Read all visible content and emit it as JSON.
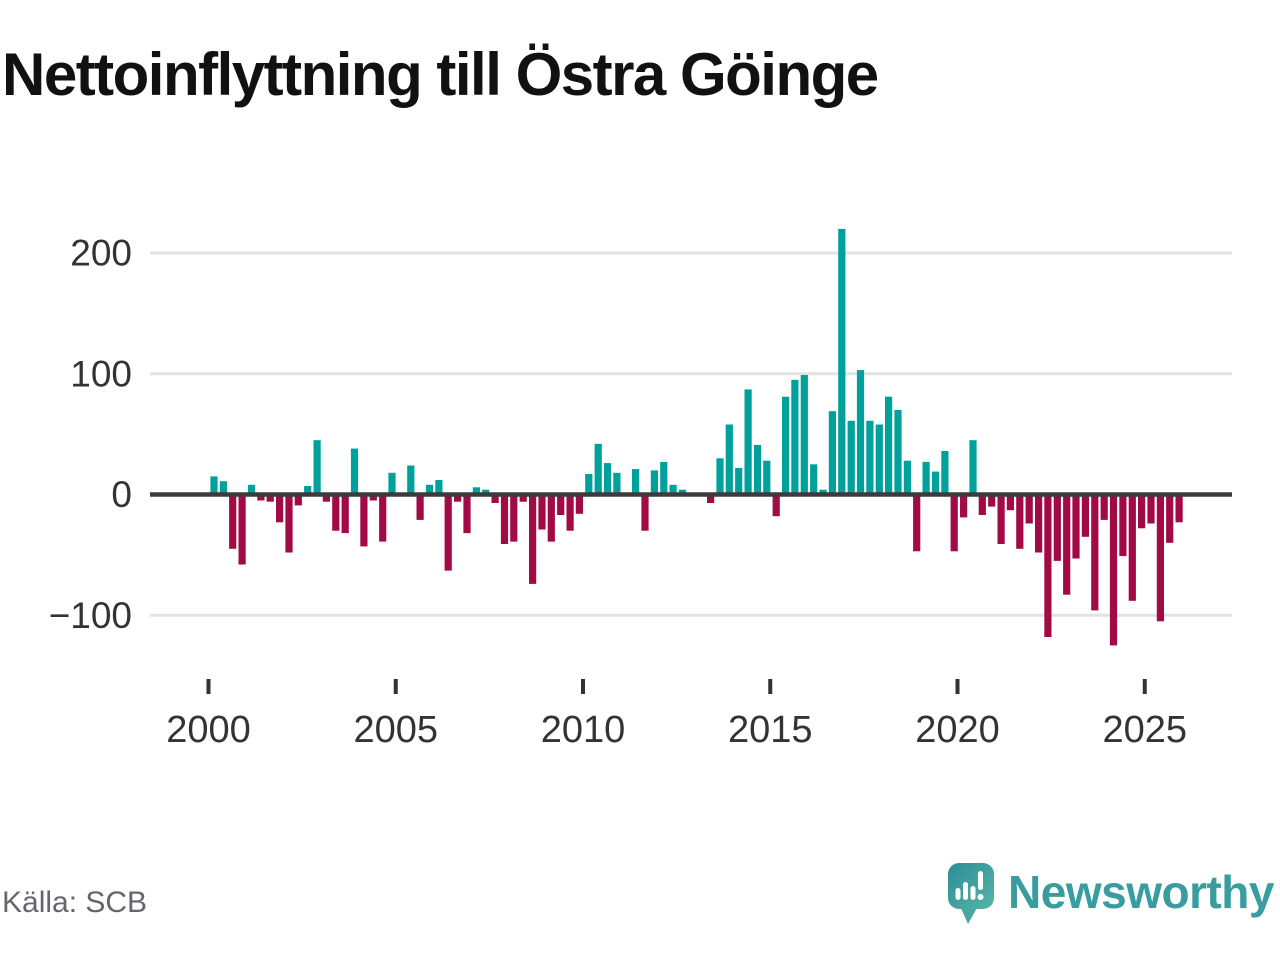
{
  "title": "Nettoinflyttning till Östra Göinge",
  "source": {
    "label": "Källa: SCB"
  },
  "brand": {
    "name": "Newsworthy",
    "color": "#399c9e",
    "icon": "newsworthy-speech-bubble-bar-chart-icon"
  },
  "chart_data": {
    "type": "bar",
    "title": "Nettoinflyttning till Östra Göinge",
    "xlabel": "",
    "ylabel": "",
    "frequency": "quarterly",
    "start_year": 2000,
    "end_year": 2025,
    "values": [
      15,
      11,
      -45,
      -58,
      8,
      -5,
      -6,
      -23,
      -48,
      -9,
      7,
      45,
      -6,
      -30,
      -32,
      38,
      -43,
      -5,
      -39,
      18,
      0,
      24,
      -21,
      8,
      12,
      -63,
      -6,
      -32,
      6,
      4,
      -7,
      -41,
      -39,
      -6,
      -74,
      -29,
      -39,
      -17,
      -30,
      -16,
      17,
      42,
      26,
      18,
      0,
      21,
      -30,
      20,
      27,
      8,
      4,
      0,
      0,
      -7,
      30,
      58,
      22,
      87,
      41,
      28,
      -18,
      81,
      95,
      99,
      25,
      4,
      69,
      220,
      61,
      103,
      61,
      58,
      81,
      70,
      28,
      -47,
      27,
      19,
      36,
      -47,
      -19,
      45,
      -17,
      -10,
      -41,
      -13,
      -45,
      -24,
      -48,
      -118,
      -55,
      -83,
      -53,
      -35,
      -96,
      -21,
      -125,
      -51,
      -88,
      -28,
      -24,
      -105,
      -40,
      -23
    ],
    "x_ticks": [
      2000,
      2005,
      2010,
      2015,
      2020,
      2025
    ],
    "x_tick_labels": [
      "2000",
      "2005",
      "2010",
      "2015",
      "2020",
      "2025"
    ],
    "y_ticks": [
      200,
      100,
      0,
      -100
    ],
    "y_tick_labels": [
      "200",
      "100",
      "0",
      "−100"
    ],
    "ylim": [
      -140,
      235
    ],
    "grid": true,
    "legend": "none",
    "colors": {
      "positive": "#00a09b",
      "negative": "#a20a46",
      "zero_line": "#3b3b3b",
      "grid_line": "#e2e2e2",
      "axis_text": "#333333"
    }
  }
}
